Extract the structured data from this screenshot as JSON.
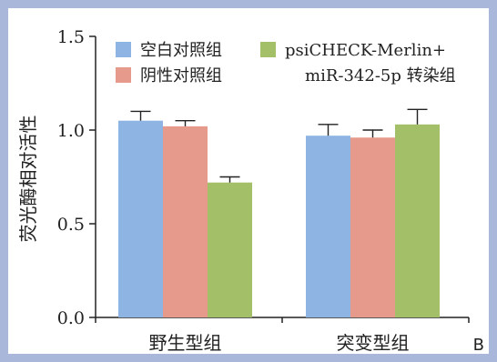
{
  "chart_data": {
    "type": "bar",
    "panel_label": "B",
    "ylabel": "荧光酶相对活性",
    "ylim": [
      0.0,
      1.5
    ],
    "yticks": [
      "0.0",
      "0.5",
      "1.0",
      "1.5"
    ],
    "categories": [
      "野生型组",
      "突变型组"
    ],
    "series": [
      {
        "name": "空白对照组",
        "color": "#8eb4e3",
        "values": [
          1.05,
          0.97
        ],
        "errors": [
          0.05,
          0.06
        ]
      },
      {
        "name": "阴性对照组",
        "color": "#e69a8b",
        "values": [
          1.02,
          0.96
        ],
        "errors": [
          0.03,
          0.04
        ]
      },
      {
        "name": "psiCHECK-Merlin+ miR-342-5p 转染组",
        "name_lines": [
          "psiCHECK-Merlin+",
          "miR-342-5p 转染组"
        ],
        "color": "#a3c068",
        "values": [
          0.72,
          1.03
        ],
        "errors": [
          0.03,
          0.08
        ]
      }
    ],
    "legend": "top",
    "grid": false
  }
}
